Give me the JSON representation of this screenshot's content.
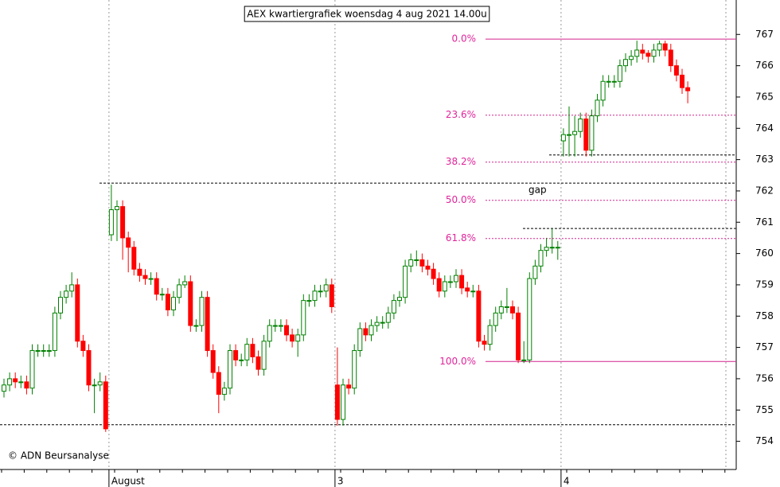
{
  "chart_data": {
    "type": "candlestick",
    "title": "AEX kwartiergrafiek woensdag 4 aug 2021 14.00u",
    "annotation": "gap",
    "credit": "© ADN Beursanalyse",
    "categories": [
      null,
      null,
      null,
      null,
      null,
      null,
      null,
      null,
      null,
      null,
      null,
      null,
      null,
      null,
      null,
      null,
      null,
      null,
      null,
      "August",
      null,
      null,
      null,
      null,
      null,
      null,
      null,
      null,
      null,
      null,
      null,
      null,
      null,
      null,
      null,
      null,
      null,
      null,
      null,
      null,
      null,
      null,
      null,
      null,
      null,
      null,
      null,
      null,
      null,
      null,
      null,
      null,
      null,
      null,
      null,
      null,
      null,
      null,
      null,
      "3",
      null,
      null,
      null,
      null,
      null,
      null,
      null,
      null,
      null,
      null,
      null,
      null,
      null,
      null,
      null,
      null,
      null,
      null,
      null,
      null,
      null,
      null,
      null,
      null,
      null,
      null,
      null,
      null,
      null,
      null,
      null,
      null,
      null,
      null,
      null,
      null,
      null,
      null,
      null,
      "4",
      null,
      null,
      null,
      null,
      null,
      null,
      null,
      null,
      null,
      null,
      null,
      null,
      null,
      null,
      null,
      null,
      null,
      null,
      null,
      null,
      null,
      null
    ],
    "open": [
      755.6,
      755.8,
      756.0,
      755.9,
      755.9,
      755.7,
      756.9,
      756.9,
      756.9,
      756.9,
      758.1,
      758.6,
      758.8,
      759.0,
      757.2,
      756.9,
      755.8,
      755.8,
      755.9,
      760.6,
      761.4,
      761.5,
      760.5,
      760.2,
      759.5,
      759.3,
      759.2,
      759.2,
      758.7,
      758.7,
      758.2,
      758.6,
      759.0,
      759.1,
      757.7,
      757.7,
      758.6,
      756.9,
      756.2,
      755.5,
      755.7,
      756.9,
      756.6,
      756.6,
      757.1,
      756.7,
      756.3,
      757.2,
      757.7,
      757.7,
      757.7,
      757.4,
      757.2,
      757.4,
      758.5,
      758.5,
      758.8,
      758.8,
      759.0,
      755.8,
      754.7,
      755.8,
      755.7,
      756.9,
      757.6,
      757.4,
      757.7,
      757.8,
      757.8,
      758.1,
      758.5,
      758.6,
      759.6,
      759.8,
      759.8,
      759.6,
      759.5,
      759.2,
      758.8,
      759.1,
      759.1,
      759.3,
      758.9,
      758.8,
      758.8,
      757.2,
      757.1,
      757.7,
      758.1,
      758.3,
      758.3,
      758.1,
      756.6,
      756.6,
      759.2,
      759.6,
      760.1,
      760.2,
      760.2,
      763.6,
      763.8,
      763.8,
      763.9,
      764.3,
      763.3,
      764.4,
      764.9,
      765.5,
      765.5,
      765.5,
      766.0,
      766.2,
      766.3,
      766.5,
      766.4,
      766.3,
      766.5,
      766.7,
      766.5,
      766.0,
      765.7,
      765.3
    ],
    "high": [
      756.0,
      756.2,
      756.2,
      756.1,
      756.1,
      757.1,
      757.1,
      757.1,
      757.1,
      758.3,
      758.8,
      759.0,
      759.4,
      759.2,
      757.4,
      757.1,
      756.0,
      756.2,
      756.1,
      762.2,
      761.7,
      761.7,
      760.7,
      760.4,
      759.7,
      759.5,
      759.4,
      759.4,
      758.9,
      758.9,
      758.8,
      759.2,
      759.3,
      759.3,
      757.9,
      758.8,
      758.8,
      757.1,
      756.4,
      755.9,
      757.1,
      757.1,
      756.8,
      757.3,
      757.3,
      756.9,
      757.4,
      757.9,
      757.9,
      757.9,
      757.9,
      757.6,
      757.6,
      758.7,
      758.7,
      759.0,
      759.0,
      759.2,
      759.2,
      757.0,
      756.0,
      756.0,
      757.1,
      757.8,
      757.8,
      757.9,
      758.0,
      758.0,
      758.3,
      758.7,
      758.8,
      759.8,
      760.0,
      760.1,
      760.0,
      759.8,
      759.7,
      759.4,
      759.3,
      759.3,
      759.5,
      759.5,
      759.1,
      759.0,
      759.0,
      757.4,
      757.9,
      758.3,
      758.5,
      758.9,
      758.5,
      758.3,
      757.2,
      759.4,
      759.8,
      760.3,
      760.5,
      760.8,
      760.4,
      764.0,
      764.7,
      764.4,
      764.5,
      764.5,
      764.6,
      765.1,
      765.7,
      765.7,
      765.7,
      766.2,
      766.4,
      766.5,
      766.8,
      766.7,
      766.5,
      766.7,
      766.8,
      766.8,
      766.7,
      766.2,
      765.9,
      765.5
    ],
    "low": [
      755.4,
      755.6,
      755.7,
      755.7,
      755.5,
      755.5,
      756.7,
      756.7,
      756.7,
      756.7,
      757.9,
      758.4,
      758.6,
      757.0,
      756.7,
      755.6,
      754.9,
      755.6,
      754.3,
      760.4,
      760.4,
      759.8,
      759.4,
      759.3,
      759.1,
      759.0,
      759.0,
      758.5,
      758.5,
      758.0,
      758.0,
      758.4,
      758.9,
      757.5,
      757.5,
      757.5,
      756.7,
      756.0,
      754.9,
      755.3,
      755.5,
      756.4,
      756.4,
      756.4,
      756.5,
      756.1,
      756.1,
      757.0,
      757.5,
      757.5,
      757.2,
      757.0,
      756.7,
      757.2,
      758.3,
      758.3,
      758.6,
      758.6,
      758.1,
      754.5,
      754.5,
      755.5,
      755.5,
      756.7,
      757.2,
      757.2,
      757.5,
      757.6,
      757.6,
      757.9,
      758.3,
      758.4,
      759.4,
      759.6,
      759.4,
      759.3,
      759.0,
      758.6,
      758.6,
      758.9,
      758.9,
      758.7,
      758.6,
      758.6,
      757.0,
      756.9,
      756.9,
      757.5,
      757.9,
      758.1,
      757.9,
      756.5,
      756.5,
      756.5,
      759.0,
      759.4,
      759.9,
      760.0,
      759.8,
      763.1,
      763.1,
      763.1,
      763.7,
      763.1,
      763.1,
      764.2,
      764.7,
      765.3,
      765.3,
      765.3,
      765.8,
      766.0,
      766.1,
      766.2,
      766.1,
      766.1,
      766.3,
      766.3,
      765.8,
      765.5,
      765.1,
      764.8
    ],
    "close": [
      755.8,
      756.0,
      755.9,
      755.9,
      755.7,
      756.9,
      756.9,
      756.9,
      756.9,
      758.1,
      758.6,
      758.8,
      759.0,
      757.2,
      756.9,
      755.8,
      755.8,
      755.9,
      754.4,
      761.4,
      761.5,
      760.5,
      760.2,
      759.5,
      759.3,
      759.2,
      759.2,
      758.7,
      758.7,
      758.2,
      758.6,
      759.0,
      759.1,
      757.7,
      757.7,
      758.6,
      756.9,
      756.2,
      755.5,
      755.7,
      756.9,
      756.6,
      756.6,
      757.1,
      756.7,
      756.3,
      757.2,
      757.7,
      757.7,
      757.7,
      757.4,
      757.2,
      757.4,
      758.5,
      758.5,
      758.8,
      758.8,
      759.0,
      758.3,
      754.7,
      755.8,
      755.7,
      756.9,
      757.6,
      757.4,
      757.7,
      757.8,
      757.8,
      758.1,
      758.5,
      758.6,
      759.6,
      759.8,
      759.8,
      759.6,
      759.5,
      759.2,
      758.8,
      759.1,
      759.1,
      759.3,
      758.9,
      758.8,
      758.8,
      757.2,
      757.1,
      757.7,
      758.1,
      758.3,
      758.3,
      758.1,
      756.6,
      756.6,
      759.2,
      759.6,
      760.1,
      760.2,
      760.2,
      760.2,
      763.8,
      763.8,
      763.9,
      764.3,
      763.3,
      764.4,
      764.9,
      765.5,
      765.5,
      765.5,
      766.0,
      766.2,
      766.3,
      766.5,
      766.4,
      766.3,
      766.5,
      766.7,
      766.5,
      766.0,
      765.7,
      765.3,
      765.2
    ],
    "up_color": "#008000",
    "down_color": "#ff0000",
    "fib_color": "#d4238f",
    "ylim": [
      753.1,
      768.1
    ],
    "yticks": [
      754,
      755,
      756,
      757,
      758,
      759,
      760,
      761,
      762,
      763,
      764,
      765,
      766,
      767
    ],
    "fib_levels": [
      {
        "label": "0.0%",
        "value": 766.85
      },
      {
        "label": "23.6%",
        "value": 764.42
      },
      {
        "label": "38.2%",
        "value": 762.92
      },
      {
        "label": "50.0%",
        "value": 761.7
      },
      {
        "label": "61.8%",
        "value": 760.48
      },
      {
        "label": "100.0%",
        "value": 756.55
      }
    ],
    "reference_lines": [
      762.25,
      754.53,
      760.8,
      763.15
    ]
  }
}
